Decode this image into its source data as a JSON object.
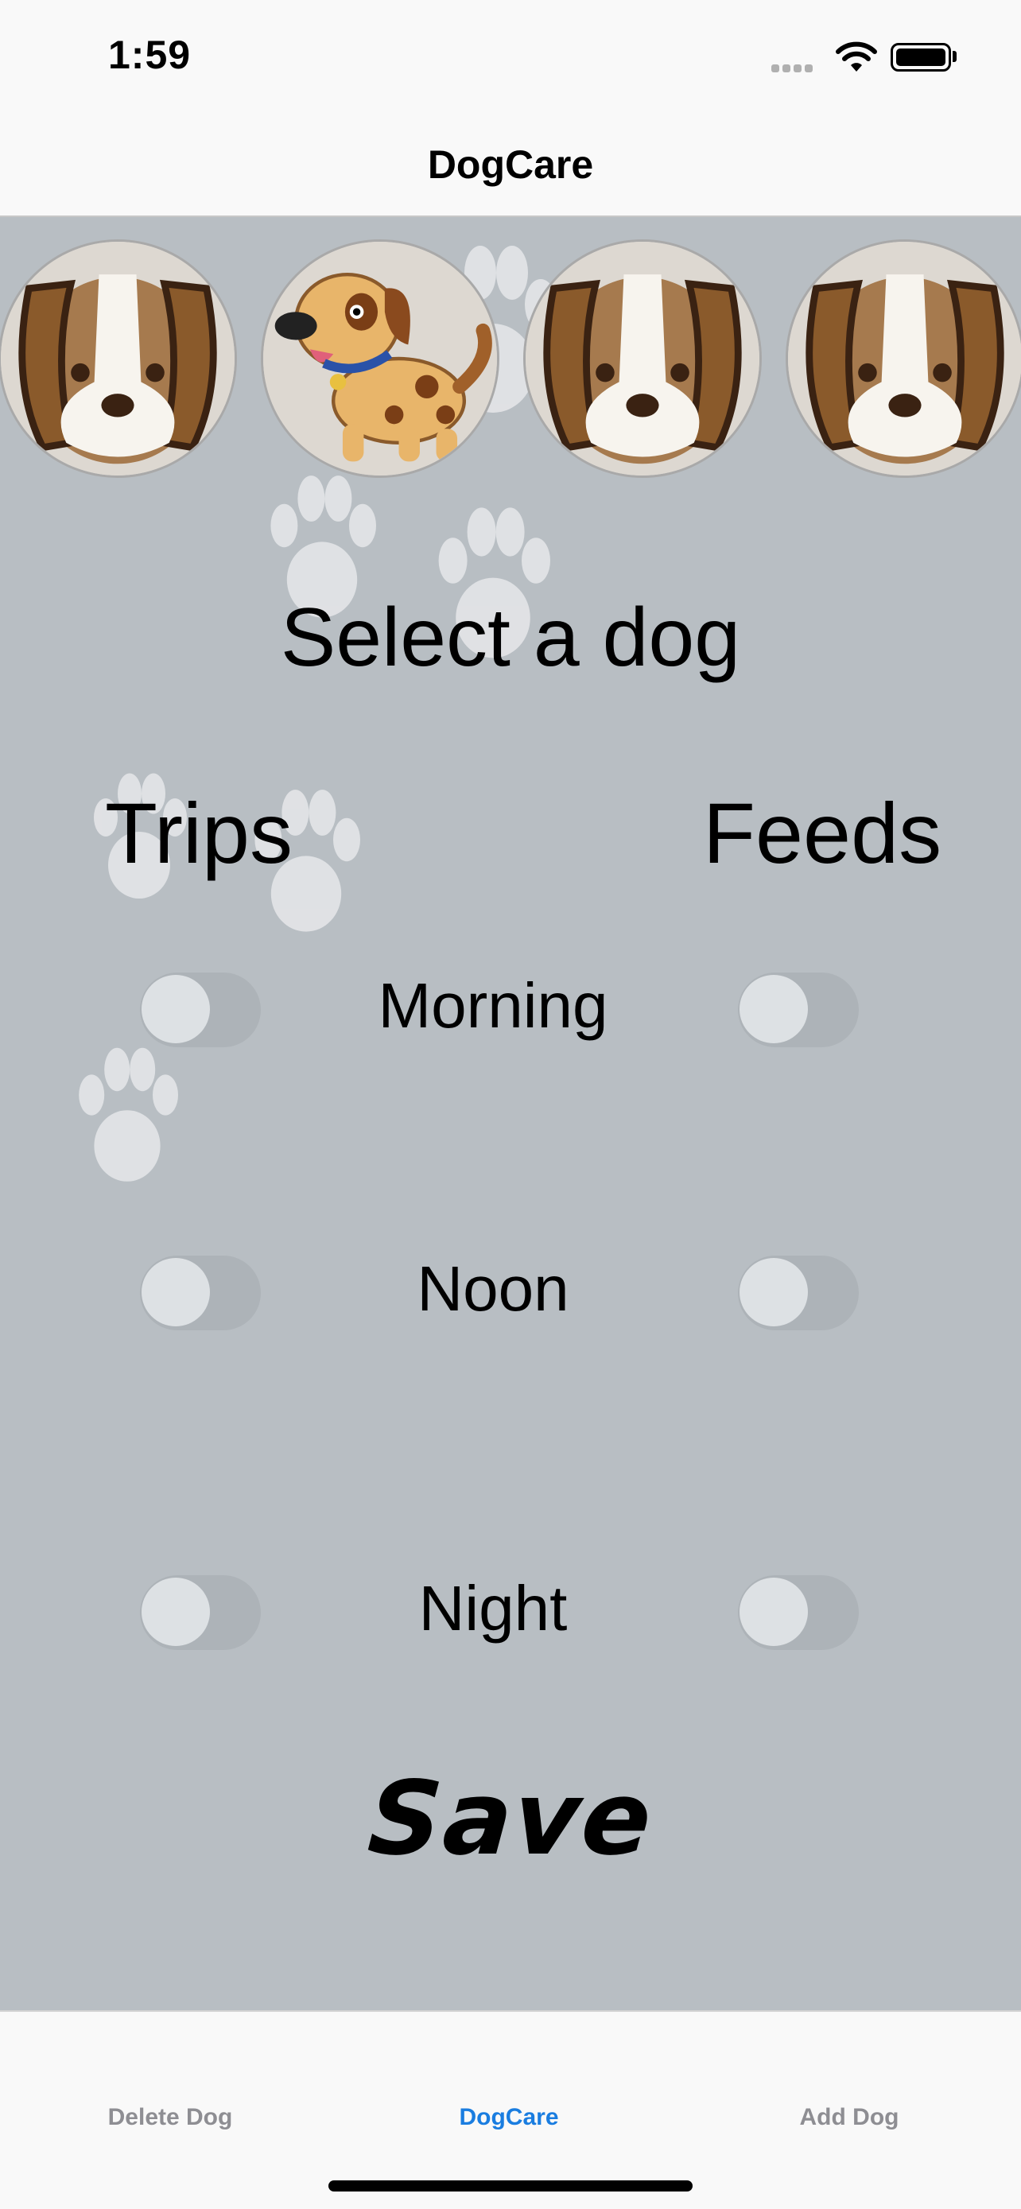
{
  "status_bar": {
    "time": "1:59"
  },
  "nav": {
    "title": "DogCare"
  },
  "dogs": [
    {
      "name": "dog-avatar-1",
      "icon": "beagle-face"
    },
    {
      "name": "dog-avatar-2",
      "icon": "spotted-puppy"
    },
    {
      "name": "dog-avatar-3",
      "icon": "beagle-face"
    },
    {
      "name": "dog-avatar-4",
      "icon": "beagle-face"
    }
  ],
  "main": {
    "prompt": "Select a dog",
    "trips_label": "Trips",
    "feeds_label": "Feeds",
    "times": [
      "Morning",
      "Noon",
      "Night"
    ],
    "toggles": {
      "morning_trip": false,
      "morning_feed": false,
      "noon_trip": false,
      "noon_feed": false,
      "night_trip": false,
      "night_feed": false
    },
    "save_label": "Save"
  },
  "tabs": [
    {
      "label": "Delete Dog",
      "active": false
    },
    {
      "label": "DogCare",
      "active": true
    },
    {
      "label": "Add Dog",
      "active": false
    }
  ],
  "colors": {
    "background": "#b8bec3",
    "accent": "#1a7de0",
    "inactive_tab": "#8e8e93"
  }
}
